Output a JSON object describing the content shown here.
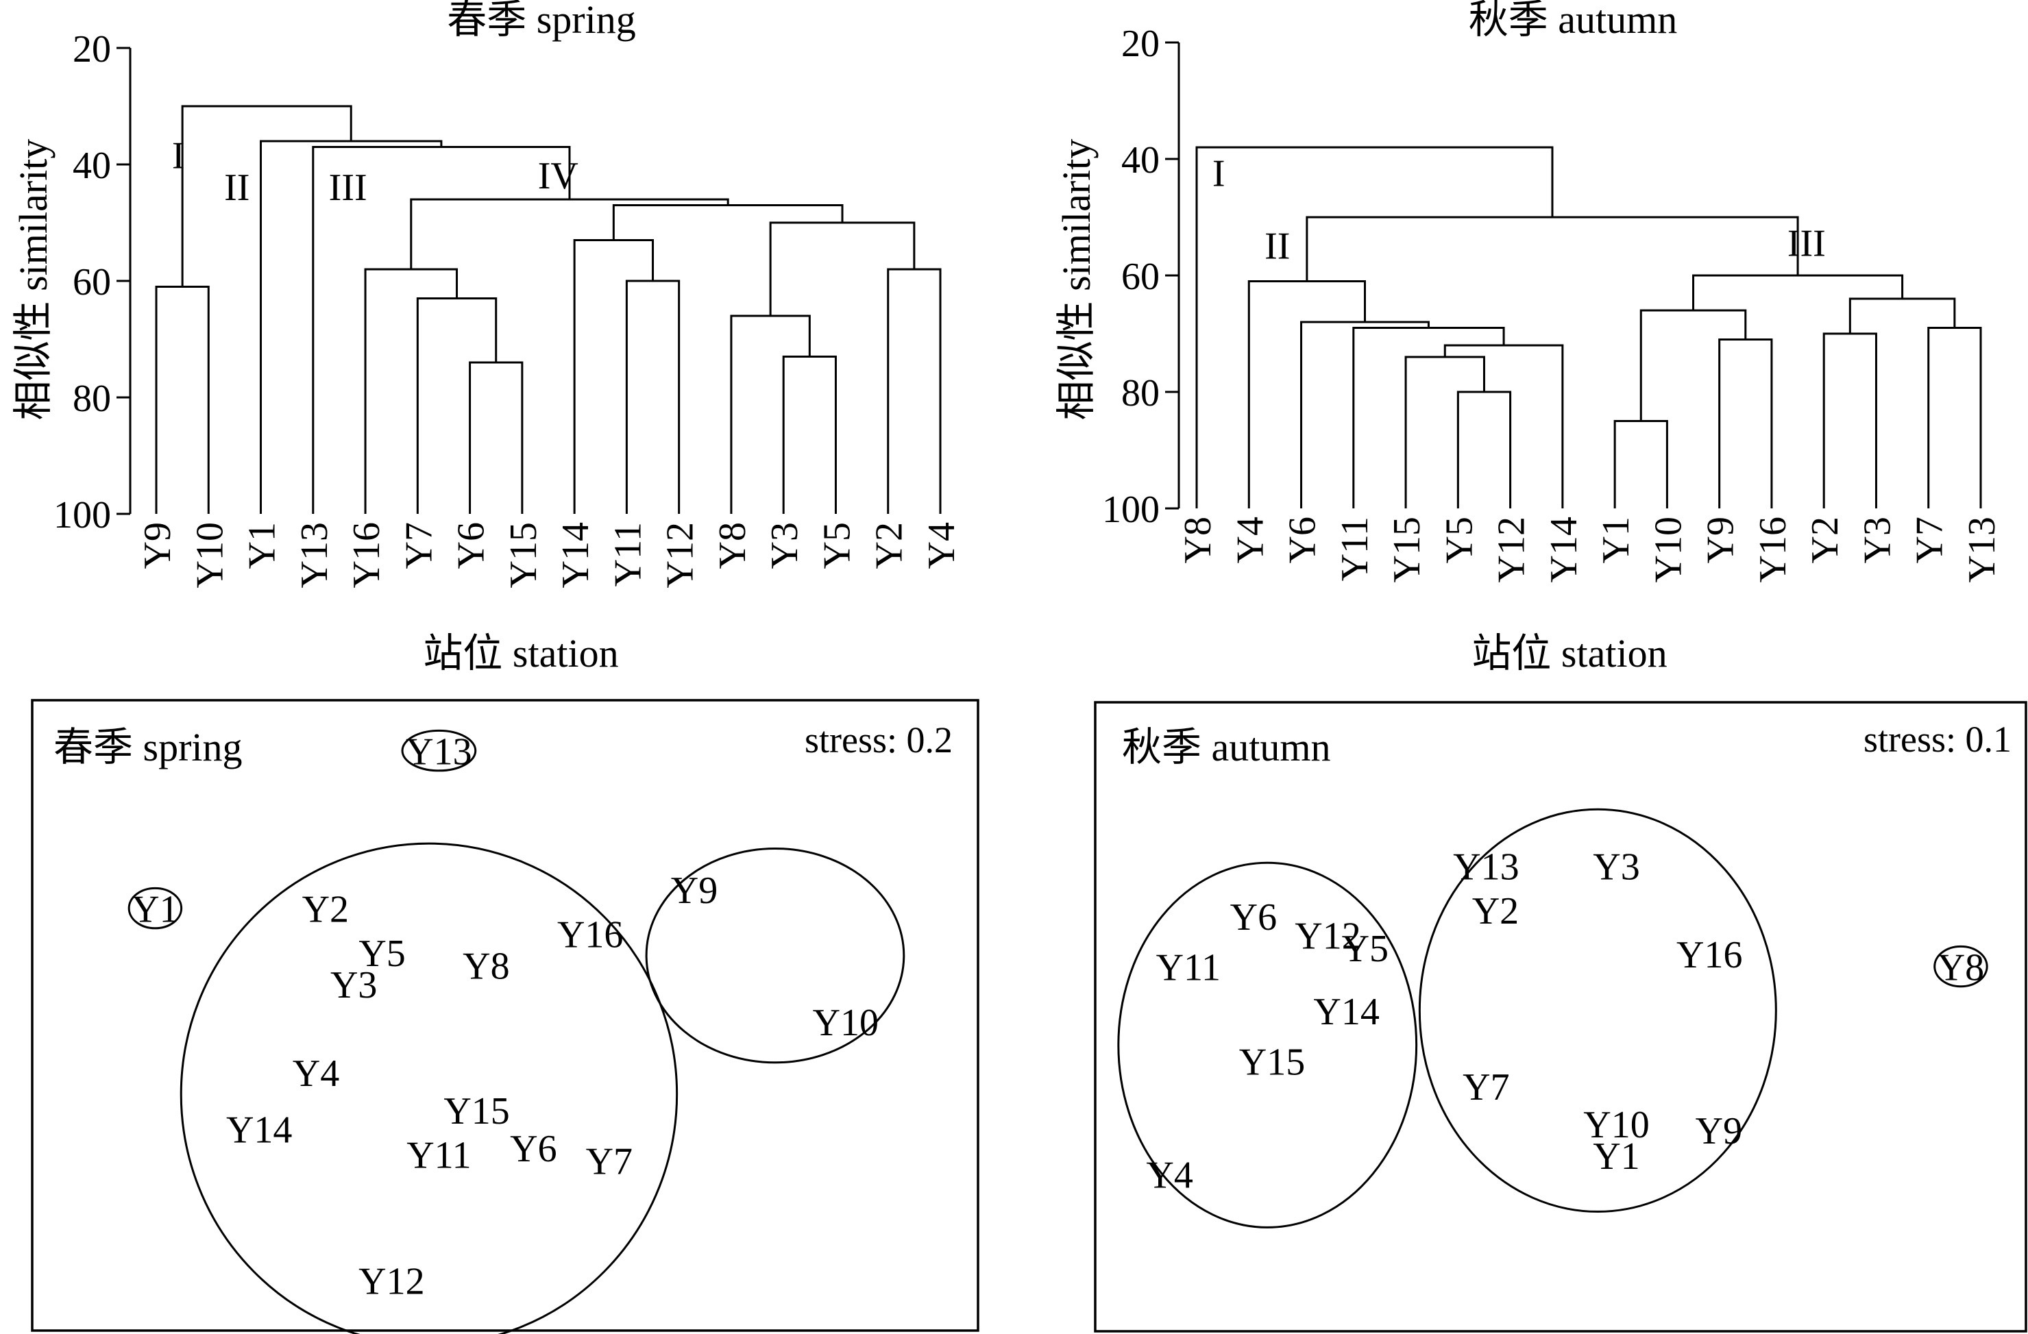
{
  "chart_data": [
    {
      "type": "dendrogram",
      "title": "春季 spring",
      "xlabel": "站位 station",
      "ylabel": "相似性 similarity",
      "ylim": [
        20,
        100
      ],
      "yticks": [
        20,
        40,
        60,
        80,
        100
      ],
      "leaves": [
        "Y9",
        "Y10",
        "Y1",
        "Y13",
        "Y16",
        "Y7",
        "Y6",
        "Y15",
        "Y14",
        "Y11",
        "Y12",
        "Y8",
        "Y3",
        "Y5",
        "Y2",
        "Y4"
      ],
      "merges": [
        {
          "id": "a",
          "left": "Y9",
          "right": "Y10",
          "similarity": 61
        },
        {
          "id": "b",
          "left": "Y6",
          "right": "Y15",
          "similarity": 74
        },
        {
          "id": "c",
          "left": "Y7",
          "right": "b",
          "similarity": 63
        },
        {
          "id": "d",
          "left": "Y16",
          "right": "c",
          "similarity": 58
        },
        {
          "id": "e",
          "left": "Y3",
          "right": "Y5",
          "similarity": 73
        },
        {
          "id": "f",
          "left": "Y8",
          "right": "e",
          "similarity": 66
        },
        {
          "id": "g",
          "left": "Y2",
          "right": "Y4",
          "similarity": 58
        },
        {
          "id": "h",
          "left": "f",
          "right": "g",
          "similarity": 50
        },
        {
          "id": "i",
          "left": "Y11",
          "right": "Y12",
          "similarity": 60
        },
        {
          "id": "j",
          "left": "Y14",
          "right": "i",
          "similarity": 53
        },
        {
          "id": "k",
          "left": "j",
          "right": "h",
          "similarity": 47
        },
        {
          "id": "l",
          "left": "d",
          "right": "k",
          "similarity": 46
        },
        {
          "id": "m",
          "left": "Y13",
          "right": "l",
          "similarity": 37
        },
        {
          "id": "n",
          "left": "Y1",
          "right": "m",
          "similarity": 36
        },
        {
          "id": "o",
          "left": "a",
          "right": "n",
          "similarity": 30
        }
      ],
      "groups": [
        {
          "label": "I",
          "similarity": 38.5,
          "after_leaf": "Y9"
        },
        {
          "label": "II",
          "similarity": 44,
          "after_leaf": "Y10"
        },
        {
          "label": "III",
          "similarity": 44,
          "after_leaf": "Y13"
        },
        {
          "label": "IV",
          "similarity": 42,
          "after_leaf": "Y15"
        }
      ]
    },
    {
      "type": "dendrogram",
      "title": "秋季 autumn",
      "xlabel": "站位 station",
      "ylabel": "相似性 similarity",
      "ylim": [
        20,
        100
      ],
      "yticks": [
        20,
        40,
        60,
        80,
        100
      ],
      "leaves": [
        "Y8",
        "Y4",
        "Y6",
        "Y11",
        "Y15",
        "Y5",
        "Y12",
        "Y14",
        "Y1",
        "Y10",
        "Y9",
        "Y16",
        "Y2",
        "Y3",
        "Y7",
        "Y13"
      ],
      "merges": [
        {
          "id": "a",
          "left": "Y5",
          "right": "Y12",
          "similarity": 80
        },
        {
          "id": "b",
          "left": "Y15",
          "right": "a",
          "similarity": 74
        },
        {
          "id": "c",
          "left": "b",
          "right": "Y14",
          "similarity": 72
        },
        {
          "id": "d",
          "left": "Y11",
          "right": "c",
          "similarity": 69
        },
        {
          "id": "e",
          "left": "Y6",
          "right": "d",
          "similarity": 68
        },
        {
          "id": "f",
          "left": "Y4",
          "right": "e",
          "similarity": 61
        },
        {
          "id": "g",
          "left": "Y1",
          "right": "Y10",
          "similarity": 85
        },
        {
          "id": "h",
          "left": "Y9",
          "right": "Y16",
          "similarity": 71
        },
        {
          "id": "i",
          "left": "g",
          "right": "h",
          "similarity": 66
        },
        {
          "id": "j",
          "left": "Y2",
          "right": "Y3",
          "similarity": 70
        },
        {
          "id": "k",
          "left": "Y7",
          "right": "Y13",
          "similarity": 69
        },
        {
          "id": "l",
          "left": "j",
          "right": "k",
          "similarity": 64
        },
        {
          "id": "m",
          "left": "i",
          "right": "l",
          "similarity": 60
        },
        {
          "id": "n",
          "left": "f",
          "right": "m",
          "similarity": 50
        },
        {
          "id": "o",
          "left": "Y8",
          "right": "n",
          "similarity": 38
        }
      ],
      "groups": [
        {
          "label": "I",
          "similarity": 42.5,
          "after_leaf": "Y8"
        },
        {
          "label": "II",
          "similarity": 55,
          "after_leaf": "Y4"
        },
        {
          "label": "III",
          "similarity": 54.5,
          "after_leaf": "Y16"
        }
      ]
    },
    {
      "type": "scatter",
      "title": "春季 spring",
      "stress_text": "stress: 0.2",
      "points": [
        {
          "label": "Y13",
          "x": 0.43,
          "y": 0.92
        },
        {
          "label": "Y1",
          "x": 0.13,
          "y": 0.67
        },
        {
          "label": "Y2",
          "x": 0.31,
          "y": 0.67
        },
        {
          "label": "Y5",
          "x": 0.37,
          "y": 0.6
        },
        {
          "label": "Y3",
          "x": 0.34,
          "y": 0.55
        },
        {
          "label": "Y8",
          "x": 0.48,
          "y": 0.58
        },
        {
          "label": "Y16",
          "x": 0.59,
          "y": 0.63
        },
        {
          "label": "Y9",
          "x": 0.7,
          "y": 0.7
        },
        {
          "label": "Y10",
          "x": 0.86,
          "y": 0.49
        },
        {
          "label": "Y4",
          "x": 0.3,
          "y": 0.41
        },
        {
          "label": "Y14",
          "x": 0.24,
          "y": 0.32
        },
        {
          "label": "Y15",
          "x": 0.47,
          "y": 0.35
        },
        {
          "label": "Y11",
          "x": 0.43,
          "y": 0.28
        },
        {
          "label": "Y6",
          "x": 0.53,
          "y": 0.29
        },
        {
          "label": "Y7",
          "x": 0.61,
          "y": 0.27
        },
        {
          "label": "Y12",
          "x": 0.38,
          "y": 0.08
        }
      ],
      "clusters": [
        {
          "members": [
            "Y13"
          ]
        },
        {
          "members": [
            "Y1"
          ]
        },
        {
          "members": [
            "Y2",
            "Y5",
            "Y3",
            "Y8",
            "Y16",
            "Y4",
            "Y14",
            "Y15",
            "Y11",
            "Y6",
            "Y7",
            "Y12"
          ]
        },
        {
          "members": [
            "Y9",
            "Y10"
          ]
        }
      ]
    },
    {
      "type": "scatter",
      "title": "秋季 autumn",
      "stress_text": "stress: 0.1",
      "points": [
        {
          "label": "Y13",
          "x": 0.42,
          "y": 0.74
        },
        {
          "label": "Y3",
          "x": 0.56,
          "y": 0.74
        },
        {
          "label": "Y2",
          "x": 0.43,
          "y": 0.67
        },
        {
          "label": "Y16",
          "x": 0.66,
          "y": 0.6
        },
        {
          "label": "Y7",
          "x": 0.42,
          "y": 0.39
        },
        {
          "label": "Y10",
          "x": 0.56,
          "y": 0.33
        },
        {
          "label": "Y1",
          "x": 0.56,
          "y": 0.28
        },
        {
          "label": "Y9",
          "x": 0.67,
          "y": 0.32
        },
        {
          "label": "Y6",
          "x": 0.17,
          "y": 0.66
        },
        {
          "label": "Y12",
          "x": 0.25,
          "y": 0.63
        },
        {
          "label": "Y5",
          "x": 0.29,
          "y": 0.61
        },
        {
          "label": "Y11",
          "x": 0.1,
          "y": 0.58
        },
        {
          "label": "Y14",
          "x": 0.27,
          "y": 0.51
        },
        {
          "label": "Y15",
          "x": 0.19,
          "y": 0.43
        },
        {
          "label": "Y4",
          "x": 0.08,
          "y": 0.25
        },
        {
          "label": "Y8",
          "x": 0.93,
          "y": 0.58
        }
      ],
      "clusters": [
        {
          "members": [
            "Y6",
            "Y12",
            "Y5",
            "Y11",
            "Y14",
            "Y15",
            "Y4"
          ]
        },
        {
          "members": [
            "Y13",
            "Y3",
            "Y2",
            "Y16",
            "Y7",
            "Y10",
            "Y1",
            "Y9"
          ]
        },
        {
          "members": [
            "Y8"
          ]
        }
      ]
    }
  ]
}
